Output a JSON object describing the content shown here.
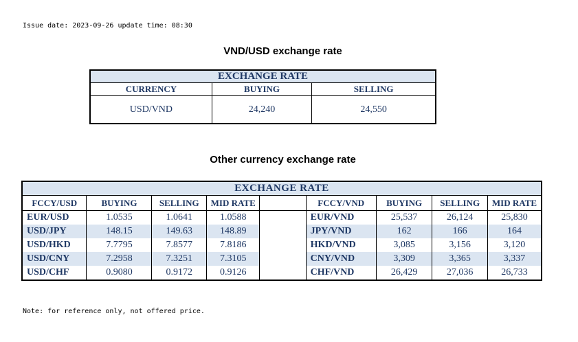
{
  "issue_line": "Issue date: 2023-09-26 update time: 08:30",
  "vnd_usd": {
    "title": "VND/USD exchange rate",
    "caption": "EXCHANGE RATE",
    "headers": [
      "CURRENCY",
      "BUYING",
      "SELLING"
    ],
    "row": [
      "USD/VND",
      "24,240",
      "24,550"
    ]
  },
  "other": {
    "title": "Other currency exchange rate",
    "caption": "EXCHANGE  RATE",
    "left_headers": [
      "FCCY/USD",
      "BUYING",
      "SELLING",
      "MID RATE"
    ],
    "right_headers": [
      "FCCY/VND",
      "BUYING",
      "SELLING",
      "MID RATE"
    ],
    "rows": [
      {
        "left": [
          "EUR/USD",
          "1.0535",
          "1.0641",
          "1.0588"
        ],
        "right": [
          "EUR/VND",
          "25,537",
          "26,124",
          "25,830"
        ]
      },
      {
        "left": [
          "USD/JPY",
          "148.15",
          "149.63",
          "148.89"
        ],
        "right": [
          "JPY/VND",
          "162",
          "166",
          "164"
        ]
      },
      {
        "left": [
          "USD/HKD",
          "7.7795",
          "7.8577",
          "7.8186"
        ],
        "right": [
          "HKD/VND",
          "3,085",
          "3,156",
          "3,120"
        ]
      },
      {
        "left": [
          "USD/CNY",
          "7.2958",
          "7.3251",
          "7.3105"
        ],
        "right": [
          "CNY/VND",
          "3,309",
          "3,365",
          "3,337"
        ]
      },
      {
        "left": [
          "USD/CHF",
          "0.9080",
          "0.9172",
          "0.9126"
        ],
        "right": [
          "CHF/VND",
          "26,429",
          "27,036",
          "26,733"
        ]
      }
    ]
  },
  "note": "Note: for reference only, not offered price."
}
